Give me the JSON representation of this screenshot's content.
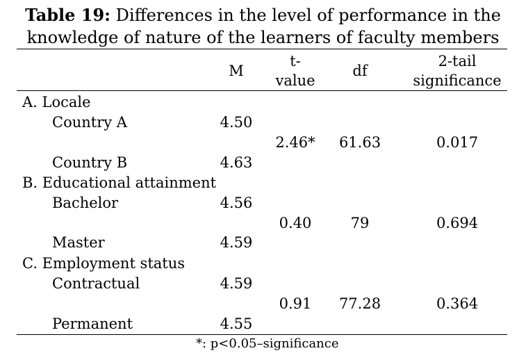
{
  "title": {
    "label": "Table 19:",
    "line1": "Differences in the level of performance in the",
    "line2": "knowledge of nature of the learners of faculty members"
  },
  "headers": {
    "m": "M",
    "t1": "t-",
    "t2": "value",
    "df": "df",
    "sig1": "2-tail",
    "sig2": "significance"
  },
  "groups": [
    {
      "name": "A. Locale",
      "rows": [
        {
          "label": "Country A",
          "m": "4.50"
        },
        {
          "label": "Country B",
          "m": "4.63"
        }
      ],
      "t": "2.46*",
      "df": "61.63",
      "sig": "0.017"
    },
    {
      "name": "B. Educational attainment",
      "rows": [
        {
          "label": "Bachelor",
          "m": "4.56"
        },
        {
          "label": "Master",
          "m": "4.59"
        }
      ],
      "t": "0.40",
      "df": "79",
      "sig": "0.694"
    },
    {
      "name": "C. Employment status",
      "rows": [
        {
          "label": "Contractual",
          "m": "4.59"
        },
        {
          "label": "Permanent",
          "m": "4.55"
        }
      ],
      "t": "0.91",
      "df": "77.28",
      "sig": "0.364"
    }
  ],
  "footnote": "*: p<0.05–significance"
}
